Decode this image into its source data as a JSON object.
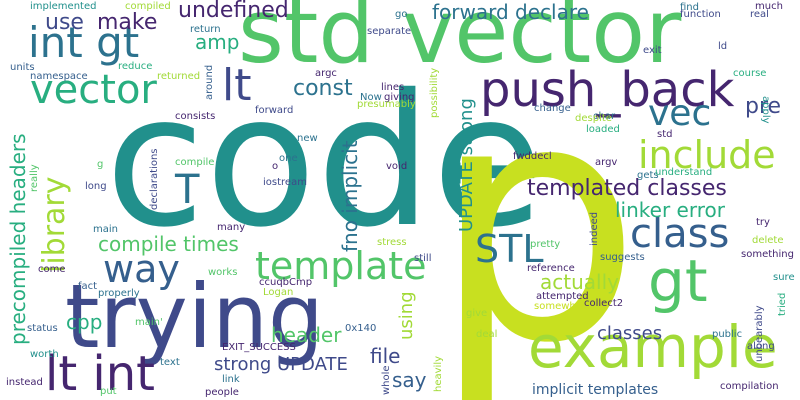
{
  "palette": {
    "background": "#ffffff",
    "dark_purple": "#45266f",
    "indigo": "#3f4a8a",
    "slate_blue": "#355f8d",
    "blue": "#2c728e",
    "teal": "#21908c",
    "sea_green": "#28ae80",
    "green": "#52c569",
    "lime": "#a2da37",
    "yellow_green": "#c8e020"
  },
  "words": [
    {
      "text": "code",
      "color": "#21908c"
    },
    {
      "text": "p",
      "color": "#c8e020"
    },
    {
      "text": "std vector",
      "color": "#52c569"
    },
    {
      "text": "trying",
      "color": "#3f4a8a"
    },
    {
      "text": "example",
      "color": "#a2da37"
    },
    {
      "text": "int gt",
      "color": "#2c728e"
    },
    {
      "text": "push_back",
      "color": "#45266f"
    },
    {
      "text": "vector",
      "color": "#28ae80"
    },
    {
      "text": "lt",
      "color": "#3f4a8a"
    },
    {
      "text": "lt int",
      "color": "#45266f"
    },
    {
      "text": "gt",
      "color": "#52c569"
    },
    {
      "text": "template",
      "color": "#52c569"
    },
    {
      "text": "class",
      "color": "#355f8d"
    },
    {
      "text": "include",
      "color": "#a2da37"
    },
    {
      "text": "vec",
      "color": "#2c728e"
    },
    {
      "text": "way",
      "color": "#355f8d"
    },
    {
      "text": "templated classes",
      "color": "#45266f"
    },
    {
      "text": "STL",
      "color": "#2c728e"
    },
    {
      "text": "library",
      "color": "#a2da37"
    },
    {
      "text": "T",
      "color": "#2c728e"
    },
    {
      "text": "undefined",
      "color": "#45266f"
    },
    {
      "text": "make",
      "color": "#45266f"
    },
    {
      "text": "use",
      "color": "#3f4a8a"
    },
    {
      "text": "amp",
      "color": "#28ae80"
    },
    {
      "text": "const",
      "color": "#2c728e"
    },
    {
      "text": "forward declare",
      "color": "#2c728e"
    },
    {
      "text": "pre",
      "color": "#3f4a8a"
    },
    {
      "text": "precompiled headers",
      "color": "#28ae80"
    },
    {
      "text": "compile times",
      "color": "#52c569"
    },
    {
      "text": "linker error",
      "color": "#28ae80"
    },
    {
      "text": "fno implicit",
      "color": "#2c728e"
    },
    {
      "text": "UPDATE strong",
      "color": "#21908c"
    },
    {
      "text": "actually",
      "color": "#a2da37"
    },
    {
      "text": "using",
      "color": "#a2da37"
    },
    {
      "text": "cpp",
      "color": "#28ae80"
    },
    {
      "text": "strong UPDATE",
      "color": "#3f4a8a"
    },
    {
      "text": "header",
      "color": "#52c569"
    },
    {
      "text": "file",
      "color": "#3f4a8a"
    },
    {
      "text": "say",
      "color": "#355f8d"
    },
    {
      "text": "classes",
      "color": "#3f4a8a"
    },
    {
      "text": "implicit templates",
      "color": "#355f8d"
    },
    {
      "text": "implemented",
      "color": "#21908c"
    },
    {
      "text": "compiled",
      "color": "#a2da37"
    },
    {
      "text": "units",
      "color": "#355f8d"
    },
    {
      "text": "namespace",
      "color": "#355f8d"
    },
    {
      "text": "reduce",
      "color": "#28ae80"
    },
    {
      "text": "returned",
      "color": "#a2da37"
    },
    {
      "text": "return",
      "color": "#2c728e"
    },
    {
      "text": "around",
      "color": "#355f8d"
    },
    {
      "text": "argc",
      "color": "#45266f"
    },
    {
      "text": "forward",
      "color": "#3f4a8a"
    },
    {
      "text": "lines",
      "color": "#45266f"
    },
    {
      "text": "Now",
      "color": "#2c728e"
    },
    {
      "text": "giving",
      "color": "#45266f"
    },
    {
      "text": "presumably",
      "color": "#a2da37"
    },
    {
      "text": "separate",
      "color": "#3f4a8a"
    },
    {
      "text": "go",
      "color": "#2c728e"
    },
    {
      "text": "possibility",
      "color": "#a2da37"
    },
    {
      "text": "find",
      "color": "#2c728e"
    },
    {
      "text": "function",
      "color": "#3f4a8a"
    },
    {
      "text": "real",
      "color": "#3f4a8a"
    },
    {
      "text": "much",
      "color": "#45266f"
    },
    {
      "text": "ld",
      "color": "#3f4a8a"
    },
    {
      "text": "exit",
      "color": "#3f4a8a"
    },
    {
      "text": "course",
      "color": "#28ae80"
    },
    {
      "text": "apply",
      "color": "#21908c"
    },
    {
      "text": "char",
      "color": "#2c728e"
    },
    {
      "text": "change",
      "color": "#355f8d"
    },
    {
      "text": "despite",
      "color": "#a2da37"
    },
    {
      "text": "loaded",
      "color": "#28ae80"
    },
    {
      "text": "std",
      "color": "#45266f"
    },
    {
      "text": "argv",
      "color": "#45266f"
    },
    {
      "text": "gets",
      "color": "#2c728e"
    },
    {
      "text": "understand",
      "color": "#28ae80"
    },
    {
      "text": "consists",
      "color": "#45266f"
    },
    {
      "text": "declarations",
      "color": "#3f4a8a"
    },
    {
      "text": "compile",
      "color": "#52c569"
    },
    {
      "text": "one",
      "color": "#2c728e"
    },
    {
      "text": "o",
      "color": "#45266f"
    },
    {
      "text": "iostream",
      "color": "#3f4a8a"
    },
    {
      "text": "void",
      "color": "#45266f"
    },
    {
      "text": "fwddecl",
      "color": "#45266f"
    },
    {
      "text": "long",
      "color": "#3f4a8a"
    },
    {
      "text": "really",
      "color": "#52c569"
    },
    {
      "text": "g",
      "color": "#52c569"
    },
    {
      "text": "many",
      "color": "#45266f"
    },
    {
      "text": "main",
      "color": "#2c728e"
    },
    {
      "text": "stress",
      "color": "#a2da37"
    },
    {
      "text": "still",
      "color": "#3f4a8a"
    },
    {
      "text": "pretty",
      "color": "#52c569"
    },
    {
      "text": "indeed",
      "color": "#3f4a8a"
    },
    {
      "text": "try",
      "color": "#45266f"
    },
    {
      "text": "delete",
      "color": "#a2da37"
    },
    {
      "text": "something",
      "color": "#45266f"
    },
    {
      "text": "sure",
      "color": "#21908c"
    },
    {
      "text": "tried",
      "color": "#28ae80"
    },
    {
      "text": "suggests",
      "color": "#355f8d"
    },
    {
      "text": "come",
      "color": "#45266f"
    },
    {
      "text": "works",
      "color": "#52c569"
    },
    {
      "text": "ccuqbCmp",
      "color": "#45266f"
    },
    {
      "text": "fact",
      "color": "#355f8d"
    },
    {
      "text": "properly",
      "color": "#2c728e"
    },
    {
      "text": "Logan",
      "color": "#a2da37"
    },
    {
      "text": "reference",
      "color": "#45266f"
    },
    {
      "text": "attempted",
      "color": "#45266f"
    },
    {
      "text": "somewhere",
      "color": "#c8e020"
    },
    {
      "text": "collect2",
      "color": "#45266f"
    },
    {
      "text": "give",
      "color": "#a2da37"
    },
    {
      "text": "deal",
      "color": "#a2da37"
    },
    {
      "text": "public",
      "color": "#2c728e"
    },
    {
      "text": "along",
      "color": "#3f4a8a"
    },
    {
      "text": "unbearably",
      "color": "#3f4a8a"
    },
    {
      "text": "status",
      "color": "#355f8d"
    },
    {
      "text": "main'",
      "color": "#52c569"
    },
    {
      "text": "0x140",
      "color": "#355f8d"
    },
    {
      "text": "EXIT_SUCCESS",
      "color": "#45266f"
    },
    {
      "text": "worth",
      "color": "#21908c"
    },
    {
      "text": "text",
      "color": "#2c728e"
    },
    {
      "text": "instead",
      "color": "#45266f"
    },
    {
      "text": "put",
      "color": "#52c569"
    },
    {
      "text": "link",
      "color": "#2c728e"
    },
    {
      "text": "people",
      "color": "#45266f"
    },
    {
      "text": "whole",
      "color": "#3f4a8a"
    },
    {
      "text": "heavily",
      "color": "#a2da37"
    },
    {
      "text": "compilation",
      "color": "#45266f"
    },
    {
      "text": "new",
      "color": "#2c728e"
    }
  ]
}
